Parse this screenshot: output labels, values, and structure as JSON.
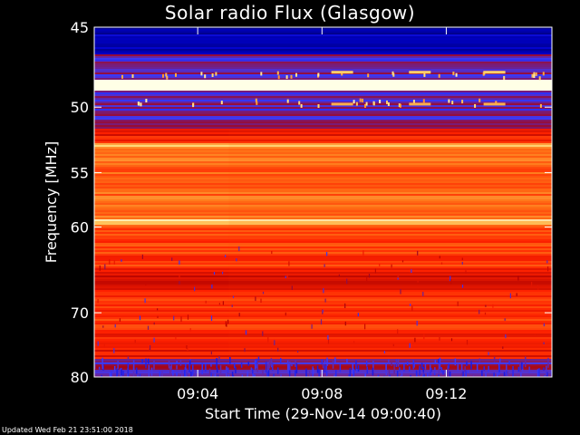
{
  "chart_data": {
    "type": "heatmap",
    "title": "Solar radio Flux (Glasgow)",
    "xlabel": "Start Time (29-Nov-14 09:00:40)",
    "ylabel": "Frequency [MHz]",
    "x_tick_labels": [
      "09:04",
      "09:08",
      "09:12"
    ],
    "x_ticks_min": [
      4,
      8,
      12
    ],
    "xlim_min": [
      0.67,
      15.4
    ],
    "y_tick_labels": [
      "45",
      "50",
      "55",
      "60",
      "70",
      "80"
    ],
    "y_ticks": [
      45,
      50,
      55,
      60,
      70,
      80
    ],
    "ylim": [
      45,
      80
    ],
    "y_scale": "reciprocal",
    "colormap": [
      "#000066",
      "#0000cc",
      "#3a3aff",
      "#b00000",
      "#ff2000",
      "#ff7a1a",
      "#ffd36a",
      "#ffffe6"
    ],
    "bands_mhz": [
      {
        "from": 45.0,
        "to": 46.6,
        "level": 0.12
      },
      {
        "from": 46.6,
        "to": 48.2,
        "level": 0.35
      },
      {
        "from": 48.2,
        "to": 48.9,
        "level": 1.0
      },
      {
        "from": 48.9,
        "to": 51.6,
        "level": 0.33
      },
      {
        "from": 51.6,
        "to": 52.7,
        "level": 0.55
      },
      {
        "from": 52.7,
        "to": 52.9,
        "level": 0.85
      },
      {
        "from": 52.9,
        "to": 59.3,
        "level": 0.68
      },
      {
        "from": 59.3,
        "to": 59.7,
        "level": 0.88
      },
      {
        "from": 59.7,
        "to": 64.5,
        "level": 0.62
      },
      {
        "from": 64.5,
        "to": 67.0,
        "level": 0.5
      },
      {
        "from": 67.0,
        "to": 73.0,
        "level": 0.6
      },
      {
        "from": 73.0,
        "to": 77.0,
        "level": 0.55
      },
      {
        "from": 77.0,
        "to": 80.0,
        "level": 0.35
      }
    ]
  },
  "footer": {
    "updated": "Updated Wed Feb 21 23:51:00 2018"
  }
}
